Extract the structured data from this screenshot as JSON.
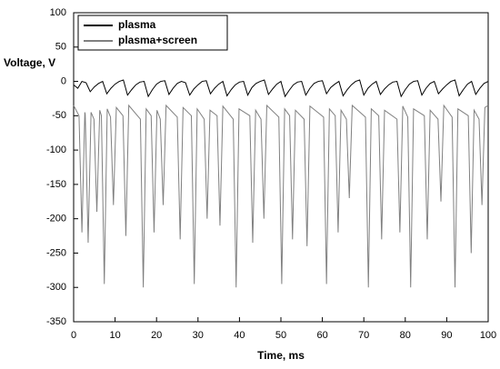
{
  "chart_data": {
    "type": "line",
    "xlabel": "Time, ms",
    "ylabel": "Voltage, V",
    "xlim": [
      0,
      100
    ],
    "xticks": [
      0,
      10,
      20,
      30,
      40,
      50,
      60,
      70,
      80,
      90,
      100
    ],
    "ylim": [
      -350,
      100
    ],
    "yticks": [
      100,
      50,
      0,
      -50,
      -100,
      -150,
      -200,
      -250,
      -300,
      -350
    ],
    "grid": false,
    "legend": "upper left",
    "series": [
      {
        "name": "plasma",
        "color": "#000000",
        "x": [
          0,
          1,
          2,
          3,
          4,
          5,
          6,
          7,
          8,
          9,
          10,
          11,
          12,
          13,
          14,
          15,
          16,
          17,
          18,
          19,
          20,
          21,
          22,
          23,
          24,
          25,
          26,
          27,
          28,
          29,
          30,
          31,
          32,
          33,
          34,
          35,
          36,
          37,
          38,
          39,
          40,
          41,
          42,
          43,
          44,
          45,
          46,
          47,
          48,
          49,
          50,
          51,
          52,
          53,
          54,
          55,
          56,
          57,
          58,
          59,
          60,
          61,
          62,
          63,
          64,
          65,
          66,
          67,
          68,
          69,
          70,
          71,
          72,
          73,
          74,
          75,
          76,
          77,
          78,
          79,
          80,
          81,
          82,
          83,
          84,
          85,
          86,
          87,
          88,
          89,
          90,
          91,
          92,
          93,
          94,
          95,
          96,
          97,
          98,
          99,
          100
        ],
        "values": [
          -5,
          -10,
          0,
          -2,
          -15,
          -8,
          -3,
          0,
          -18,
          -10,
          -4,
          0,
          2,
          -20,
          -12,
          -5,
          -1,
          0,
          -22,
          -12,
          -4,
          0,
          1,
          -19,
          -10,
          -3,
          0,
          -2,
          -20,
          -11,
          -5,
          0,
          1,
          -18,
          -10,
          -4,
          0,
          -21,
          -12,
          -5,
          -1,
          0,
          -20,
          -9,
          -3,
          0,
          2,
          -19,
          -11,
          -4,
          0,
          -22,
          -13,
          -5,
          -1,
          0,
          -20,
          -10,
          -3,
          0,
          1,
          -18,
          -9,
          -4,
          0,
          -21,
          -12,
          -5,
          0,
          2,
          -20,
          -10,
          -4,
          0,
          -19,
          -11,
          -5,
          -1,
          0,
          -22,
          -12,
          -4,
          0,
          1,
          -20,
          -10,
          -3,
          0,
          -18,
          -11,
          -5,
          0,
          2,
          -21,
          -12,
          -4,
          0,
          -19,
          -10,
          -3,
          0
        ]
      },
      {
        "name": "plasma+screen",
        "color": "#808080",
        "x": [
          0,
          1.3,
          2,
          2.7,
          2.8,
          3.5,
          4.2,
          4.9,
          5.6,
          6.3,
          6.7,
          7.4,
          8.1,
          8.9,
          9.6,
          10.3,
          11.9,
          12.6,
          13.3,
          16.1,
          16.8,
          17.5,
          18.7,
          19.4,
          20.1,
          20.9,
          21.6,
          22.3,
          25,
          25.7,
          26.4,
          28.4,
          29.1,
          29.8,
          31.5,
          32.2,
          32.9,
          34.6,
          35.3,
          36,
          38.5,
          39.2,
          39.9,
          42.5,
          43.2,
          43.9,
          45.2,
          45.9,
          46.6,
          49.5,
          50.2,
          50.9,
          52.1,
          52.8,
          53.5,
          55.6,
          56.3,
          57,
          60.3,
          61,
          61.7,
          63.1,
          63.8,
          64.5,
          65.8,
          66.5,
          67.2,
          70.4,
          71.1,
          71.8,
          73.6,
          74.3,
          75,
          78,
          78.7,
          79.4,
          80.6,
          81.3,
          82,
          84.6,
          85.3,
          86,
          87.9,
          88.6,
          89.3,
          91.3,
          92,
          92.7,
          95.2,
          95.9,
          96.6,
          97.8,
          98.5,
          99.2,
          100
        ],
        "values": [
          -35,
          -50,
          -220,
          -45,
          -48,
          -235,
          -45,
          -55,
          -190,
          -42,
          -50,
          -295,
          -40,
          -52,
          -180,
          -38,
          -50,
          -225,
          -35,
          -55,
          -300,
          -40,
          -50,
          -220,
          -42,
          -55,
          -180,
          -35,
          -52,
          -230,
          -38,
          -50,
          -295,
          -40,
          -55,
          -200,
          -42,
          -50,
          -210,
          -36,
          -55,
          -300,
          -40,
          -50,
          -235,
          -42,
          -55,
          -200,
          -35,
          -52,
          -295,
          -40,
          -50,
          -230,
          -42,
          -55,
          -240,
          -36,
          -52,
          -295,
          -40,
          -50,
          -220,
          -42,
          -55,
          -170,
          -35,
          -52,
          -300,
          -40,
          -50,
          -230,
          -42,
          -55,
          -220,
          -36,
          -52,
          -300,
          -40,
          -50,
          -230,
          -42,
          -55,
          -175,
          -35,
          -52,
          -300,
          -40,
          -50,
          -250,
          -42,
          -55,
          -180,
          -38,
          -35
        ]
      }
    ]
  }
}
